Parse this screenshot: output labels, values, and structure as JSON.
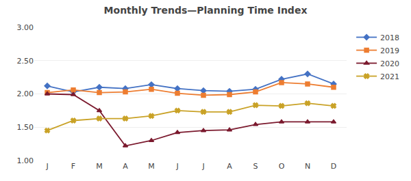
{
  "chart_data": {
    "type": "line",
    "title": "Monthly Trends—Planning Time Index",
    "categories": [
      "J",
      "F",
      "M",
      "A",
      "M",
      "J",
      "J",
      "A",
      "S",
      "O",
      "N",
      "D"
    ],
    "series": [
      {
        "name": "2018",
        "color": "#4472C4",
        "marker": "diamond",
        "values": [
          2.12,
          2.03,
          2.1,
          2.08,
          2.14,
          2.08,
          2.05,
          2.04,
          2.07,
          2.22,
          2.3,
          2.15
        ]
      },
      {
        "name": "2019",
        "color": "#ED7D31",
        "marker": "square",
        "values": [
          2.02,
          2.06,
          2.02,
          2.03,
          2.07,
          2.01,
          1.98,
          1.99,
          2.03,
          2.17,
          2.15,
          2.1
        ]
      },
      {
        "name": "2020",
        "color": "#7B1A2E",
        "marker": "triangle-up",
        "values": [
          2.0,
          1.99,
          1.75,
          1.22,
          1.3,
          1.42,
          1.45,
          1.46,
          1.54,
          1.58,
          1.58,
          1.58
        ]
      },
      {
        "name": "2021",
        "color": "#C9A227",
        "marker": "x",
        "values": [
          1.45,
          1.6,
          1.63,
          1.63,
          1.67,
          1.75,
          1.73,
          1.73,
          1.83,
          1.82,
          1.86,
          1.82
        ]
      }
    ],
    "ylim": [
      1.0,
      3.0
    ],
    "yticks": [
      {
        "value": 1.0,
        "label": "1.00"
      },
      {
        "value": 1.5,
        "label": "1.50"
      },
      {
        "value": 2.0,
        "label": "2.00"
      },
      {
        "value": 2.5,
        "label": "2.50"
      },
      {
        "value": 3.0,
        "label": "3.00"
      }
    ],
    "grid": true,
    "legend": "upper right"
  }
}
